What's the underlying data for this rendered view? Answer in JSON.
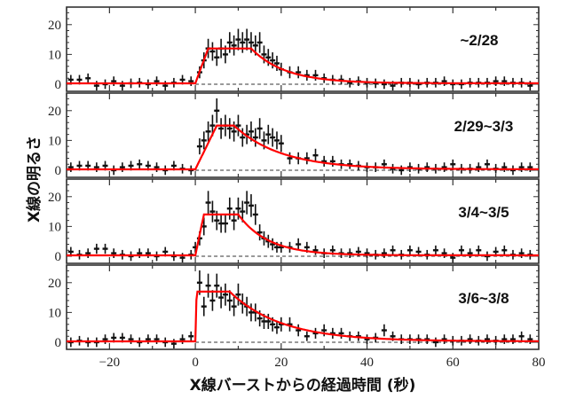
{
  "chart_data": {
    "type": "line",
    "layout": "4 stacked panels sharing x-axis",
    "xlabel": "X線バーストからの経過時間 (秒)",
    "ylabel": "X線の明るさ",
    "xlim": [
      -30,
      80
    ],
    "x_ticks": [
      -20,
      0,
      20,
      40,
      60,
      80
    ],
    "x_tick_labels": [
      "−20",
      "0",
      "20",
      "40",
      "60",
      "80"
    ],
    "y_ticks": [
      0,
      10,
      20
    ],
    "ylim": [
      -1.5,
      25
    ],
    "grid": false,
    "legend": "none; panel labels at upper right",
    "styles": {
      "data_color": "#111111",
      "model_color": "#ff0000",
      "zero_line": "dashed #333333"
    },
    "panels": [
      {
        "label": "~2/28",
        "model": {
          "baseline": 0.3,
          "rise_start": 0,
          "rise_end": 3,
          "plateau": 12,
          "plateau_end": 13,
          "decay_tau": 8
        },
        "data": {
          "x": [
            -29,
            -27,
            -25,
            -23,
            -21,
            -19,
            -17,
            -15,
            -13,
            -11,
            -9,
            -7,
            -5,
            -3,
            -1,
            1,
            2,
            3,
            4,
            5,
            6,
            7,
            8,
            9,
            10,
            11,
            12,
            13,
            14,
            15,
            16,
            17,
            18,
            19,
            20,
            22,
            24,
            26,
            28,
            30,
            32,
            34,
            36,
            38,
            40,
            42,
            44,
            46,
            48,
            50,
            52,
            54,
            56,
            58,
            60,
            62,
            64,
            66,
            68,
            70,
            72,
            74,
            76,
            78
          ],
          "y": [
            1.5,
            1.5,
            2,
            -0.5,
            0,
            1,
            -0.5,
            0.3,
            0.5,
            0,
            1,
            -0.5,
            0.5,
            1.5,
            1,
            4,
            8,
            12,
            11,
            9,
            12,
            10,
            14,
            13,
            15,
            14,
            15,
            14,
            13,
            14,
            10,
            9,
            8,
            7,
            5,
            4,
            4,
            3,
            3,
            2,
            1.5,
            1.5,
            0.5,
            1,
            0.5,
            0.3,
            0,
            -0.5,
            0.5,
            0.5,
            0,
            0.5,
            0.5,
            1,
            0,
            0,
            0.5,
            0.5,
            0.5,
            1,
            1,
            0.5,
            0.5,
            -0.5
          ]
        }
      },
      {
        "label": "2/29~3/3",
        "model": {
          "baseline": 0.3,
          "rise_start": 0,
          "rise_end": 5,
          "plateau": 15,
          "plateau_end": 9,
          "decay_tau": 11
        },
        "data": {
          "x": [
            -29,
            -27,
            -25,
            -23,
            -21,
            -19,
            -17,
            -15,
            -13,
            -11,
            -9,
            -7,
            -5,
            -3,
            -1,
            1,
            2,
            3,
            4,
            5,
            6,
            7,
            8,
            9,
            10,
            11,
            12,
            13,
            14,
            15,
            16,
            17,
            18,
            19,
            20,
            22,
            24,
            26,
            28,
            30,
            32,
            34,
            36,
            38,
            40,
            42,
            44,
            46,
            48,
            50,
            52,
            54,
            56,
            58,
            60,
            62,
            64,
            66,
            68,
            70,
            72,
            74,
            76,
            78
          ],
          "y": [
            1,
            1.5,
            1.5,
            1,
            1.5,
            0,
            1,
            1.5,
            2,
            1.5,
            1,
            0,
            1.5,
            0.5,
            0,
            8,
            10,
            13,
            15,
            20,
            14,
            15,
            14,
            13,
            15,
            11,
            12,
            13,
            11,
            14,
            10,
            12,
            11,
            10,
            9,
            4,
            4,
            4,
            5,
            3,
            3,
            2,
            2,
            1.5,
            1,
            1,
            2,
            0.5,
            0,
            1,
            0.5,
            1,
            0.5,
            1,
            2,
            0.5,
            0.5,
            1,
            2,
            0.5,
            1,
            0,
            1,
            1
          ]
        }
      },
      {
        "label": "3/4~3/5",
        "model": {
          "baseline": 0.3,
          "rise_start": 0,
          "rise_end": 2,
          "plateau": 14,
          "plateau_end": 10,
          "decay_tau": 7
        },
        "data": {
          "x": [
            -29,
            -27,
            -25,
            -23,
            -21,
            -19,
            -17,
            -15,
            -13,
            -11,
            -9,
            -7,
            -5,
            -3,
            -1,
            0,
            1,
            2,
            3,
            4,
            5,
            6,
            7,
            8,
            9,
            10,
            11,
            12,
            13,
            14,
            15,
            16,
            17,
            18,
            19,
            20,
            22,
            24,
            26,
            28,
            30,
            32,
            34,
            36,
            38,
            40,
            42,
            44,
            46,
            48,
            50,
            52,
            54,
            56,
            58,
            60,
            62,
            64,
            66,
            68,
            70,
            72,
            74,
            76,
            78
          ],
          "y": [
            1.5,
            0.5,
            1,
            2.5,
            2.5,
            1,
            0.5,
            0,
            1,
            1,
            0,
            1.5,
            0,
            -0.5,
            0.5,
            3,
            6,
            10,
            18,
            15,
            12,
            11,
            11,
            16,
            12,
            16,
            15,
            18,
            17,
            14,
            8,
            6,
            5,
            4,
            3,
            3,
            3,
            4,
            3,
            2,
            1,
            2,
            1,
            1,
            1.5,
            1,
            0.5,
            1,
            2,
            0.5,
            2,
            1.5,
            0.5,
            2,
            1,
            -0.5,
            2,
            1,
            2,
            0,
            1.5,
            2,
            0.5,
            1,
            0.5
          ]
        }
      },
      {
        "label": "3/6~3/8",
        "model": {
          "baseline": 0.3,
          "rise_start": 0,
          "rise_end": 0.3,
          "plateau": 17,
          "plateau_end": 8,
          "decay_tau": 12
        },
        "data": {
          "x": [
            -29,
            -27,
            -25,
            -23,
            -21,
            -19,
            -17,
            -15,
            -13,
            -11,
            -9,
            -7,
            -5,
            -3,
            -1,
            1,
            2,
            3,
            4,
            5,
            6,
            7,
            8,
            9,
            10,
            11,
            12,
            13,
            14,
            15,
            16,
            17,
            18,
            19,
            20,
            22,
            24,
            26,
            28,
            30,
            32,
            34,
            36,
            38,
            40,
            42,
            44,
            46,
            48,
            50,
            52,
            54,
            56,
            58,
            60,
            62,
            64,
            66,
            68,
            70,
            72,
            74,
            76,
            78
          ],
          "y": [
            0,
            0.5,
            0,
            0,
            1,
            1.5,
            1.5,
            1,
            0,
            1,
            1,
            0,
            -0.5,
            1,
            2,
            20,
            12,
            19,
            14,
            19,
            15,
            16,
            14,
            12,
            16,
            13,
            12,
            10,
            10,
            8,
            7,
            7,
            6,
            5,
            6,
            6,
            4,
            2,
            3,
            4,
            3,
            3,
            2,
            2,
            1,
            1.5,
            4,
            2,
            1,
            1,
            1,
            1,
            0,
            1,
            0.5,
            0.5,
            1,
            0.5,
            1,
            0.5,
            1,
            1,
            2,
            1
          ]
        }
      }
    ]
  },
  "labels": {
    "xlabel": "X線バーストからの経過時間 (秒)",
    "ylabel": "X線の明るさ"
  }
}
